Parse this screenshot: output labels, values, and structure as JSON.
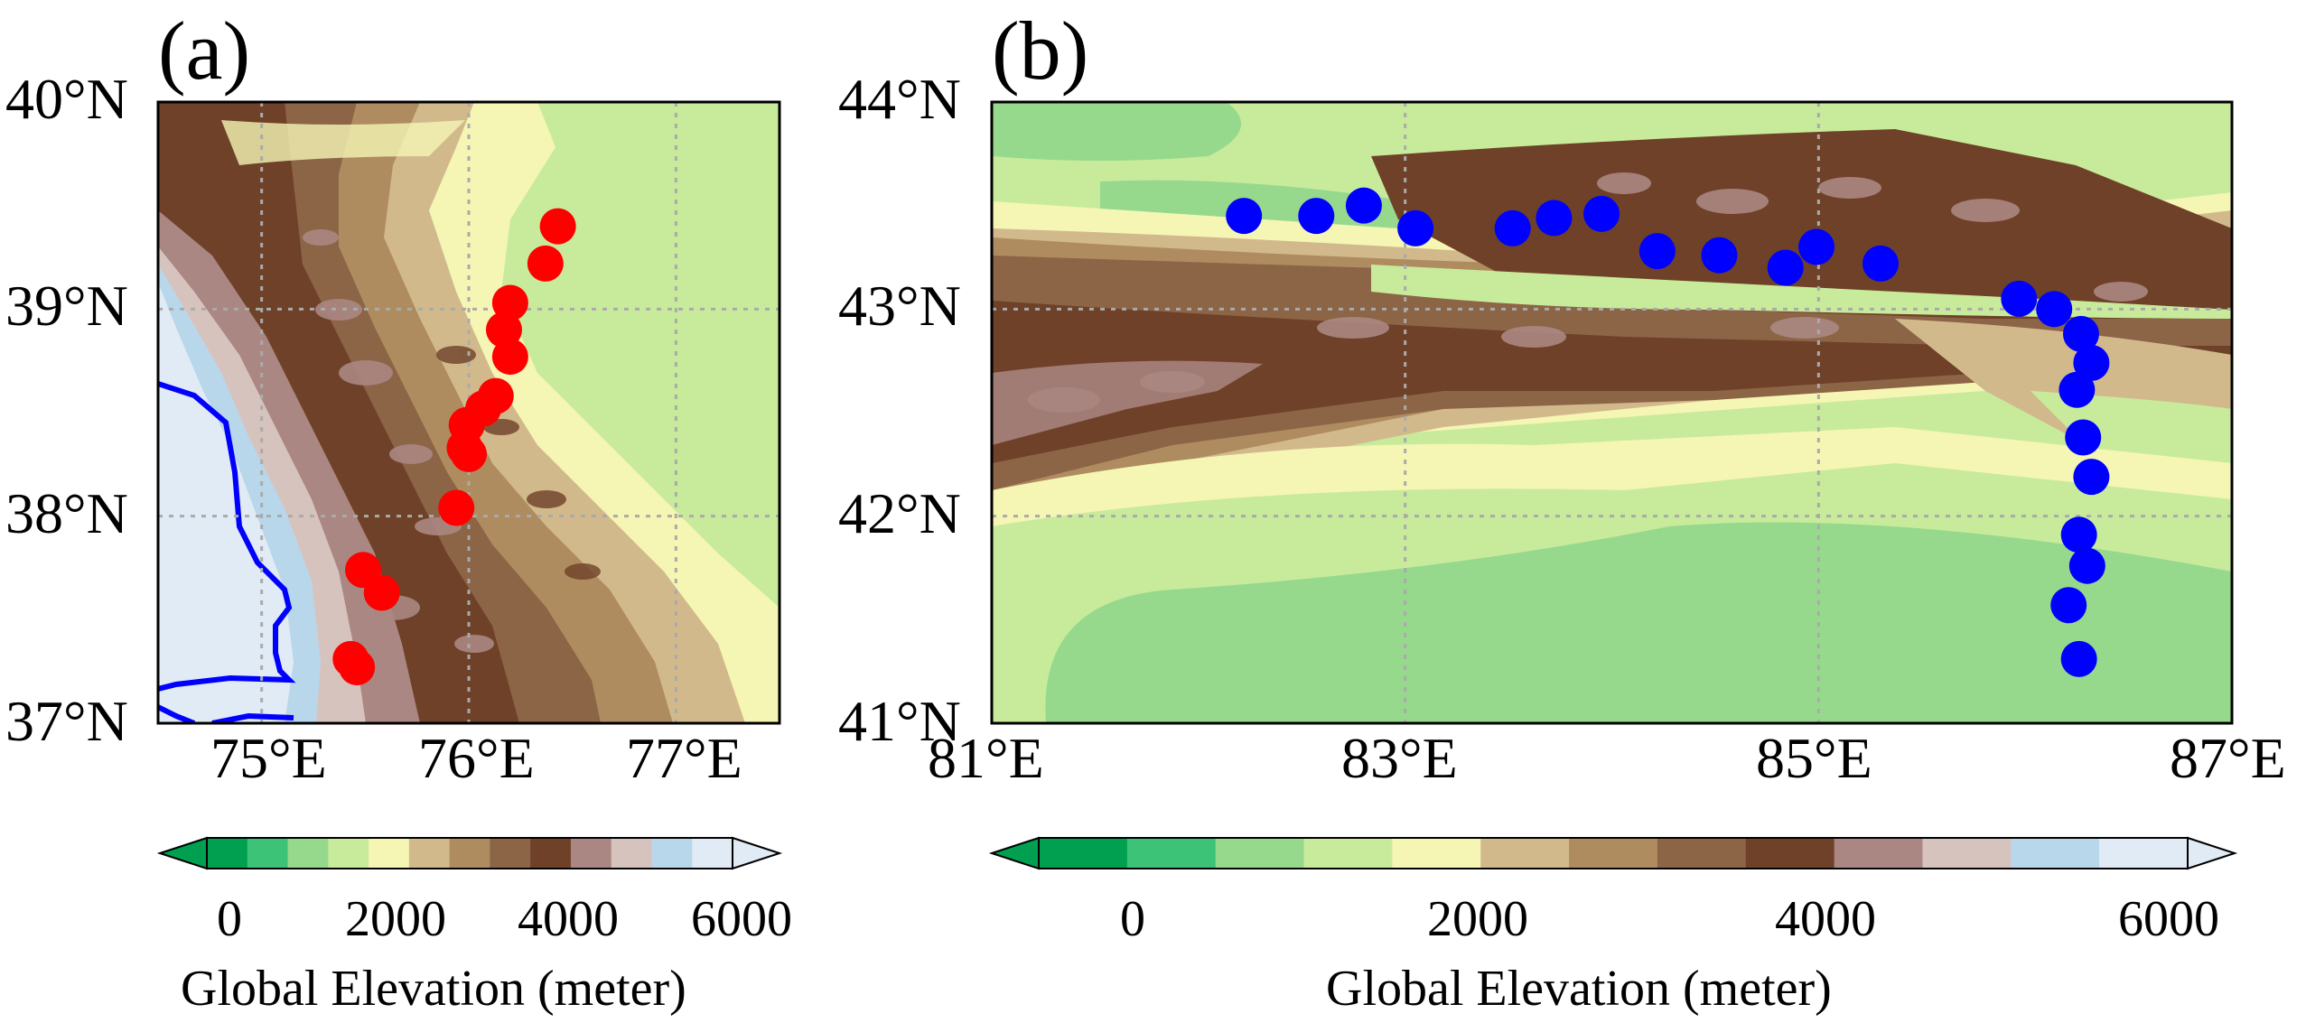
{
  "palette": [
    "#00a050",
    "#3cc378",
    "#96d98c",
    "#c8eb9b",
    "#f5f5b4",
    "#d2b98c",
    "#af8c5f",
    "#8c6446",
    "#6e4128",
    "#aa8782",
    "#d7c3be",
    "#b9d7eb",
    "#e1ebf5"
  ],
  "panels": [
    {
      "letter": "(a)",
      "lat_labels": [
        "40°N",
        "39°N",
        "38°N",
        "37°N"
      ],
      "lon_labels": [
        "75°E",
        "76°E",
        "77°E"
      ],
      "extent": {
        "lon": [
          74.5,
          77.5
        ],
        "lat": [
          37,
          40
        ]
      },
      "gridlines": {
        "lon": [
          75,
          76,
          77
        ],
        "lat": [
          38,
          39
        ]
      },
      "marker_color": "#ff0000",
      "river_color": "#0000ff",
      "markers": [
        {
          "lon": 76.43,
          "lat": 39.4
        },
        {
          "lon": 76.37,
          "lat": 39.22
        },
        {
          "lon": 76.2,
          "lat": 39.03
        },
        {
          "lon": 76.17,
          "lat": 38.9
        },
        {
          "lon": 76.2,
          "lat": 38.77
        },
        {
          "lon": 76.13,
          "lat": 38.58
        },
        {
          "lon": 76.07,
          "lat": 38.52
        },
        {
          "lon": 75.99,
          "lat": 38.44
        },
        {
          "lon": 75.98,
          "lat": 38.33
        },
        {
          "lon": 76.0,
          "lat": 38.3
        },
        {
          "lon": 75.94,
          "lat": 38.04
        },
        {
          "lon": 75.49,
          "lat": 37.74
        },
        {
          "lon": 75.58,
          "lat": 37.63
        },
        {
          "lon": 75.43,
          "lat": 37.31
        },
        {
          "lon": 75.46,
          "lat": 37.27
        }
      ],
      "colorbar": {
        "ticks": [
          "0",
          "2000",
          "4000",
          "6000"
        ],
        "title": "Global Elevation (meter)"
      }
    },
    {
      "letter": "(b)",
      "lat_labels": [
        "44°N",
        "43°N",
        "42°N",
        "41°N"
      ],
      "lon_labels": [
        "81°E",
        "83°E",
        "85°E",
        "87°E"
      ],
      "extent": {
        "lon": [
          81,
          87
        ],
        "lat": [
          41,
          44
        ]
      },
      "gridlines": {
        "lon": [
          83,
          85
        ],
        "lat": [
          42,
          43
        ]
      },
      "marker_color": "#0000ff",
      "markers": [
        {
          "lon": 82.22,
          "lat": 43.45
        },
        {
          "lon": 82.57,
          "lat": 43.45
        },
        {
          "lon": 82.8,
          "lat": 43.5
        },
        {
          "lon": 83.05,
          "lat": 43.39
        },
        {
          "lon": 83.52,
          "lat": 43.39
        },
        {
          "lon": 83.72,
          "lat": 43.44
        },
        {
          "lon": 83.95,
          "lat": 43.46
        },
        {
          "lon": 84.22,
          "lat": 43.28
        },
        {
          "lon": 84.52,
          "lat": 43.26
        },
        {
          "lon": 84.84,
          "lat": 43.2
        },
        {
          "lon": 84.99,
          "lat": 43.3
        },
        {
          "lon": 85.3,
          "lat": 43.22
        },
        {
          "lon": 85.97,
          "lat": 43.05
        },
        {
          "lon": 86.14,
          "lat": 43.0
        },
        {
          "lon": 86.27,
          "lat": 42.88
        },
        {
          "lon": 86.32,
          "lat": 42.74
        },
        {
          "lon": 86.25,
          "lat": 42.61
        },
        {
          "lon": 86.28,
          "lat": 42.38
        },
        {
          "lon": 86.32,
          "lat": 42.19
        },
        {
          "lon": 86.26,
          "lat": 41.91
        },
        {
          "lon": 86.3,
          "lat": 41.76
        },
        {
          "lon": 86.21,
          "lat": 41.57
        },
        {
          "lon": 86.26,
          "lat": 41.31
        }
      ],
      "colorbar": {
        "ticks": [
          "0",
          "2000",
          "4000",
          "6000"
        ],
        "title": "Global Elevation (meter)"
      }
    }
  ]
}
